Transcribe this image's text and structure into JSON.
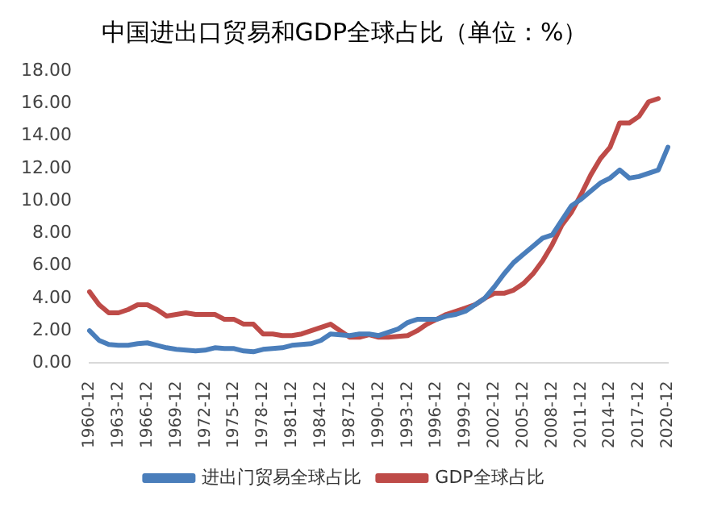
{
  "chart_data": {
    "type": "line",
    "title": "中国进出口贸易和GDP全球占比（单位：%）",
    "categories": [
      "1960-12",
      null,
      null,
      "1963-12",
      null,
      null,
      "1966-12",
      null,
      null,
      "1969-12",
      null,
      null,
      "1972-12",
      null,
      null,
      "1975-12",
      null,
      null,
      "1978-12",
      null,
      null,
      "1981-12",
      null,
      null,
      "1984-12",
      null,
      null,
      "1987-12",
      null,
      null,
      "1990-12",
      null,
      null,
      "1993-12",
      null,
      null,
      "1996-12",
      null,
      null,
      "1999-12",
      null,
      null,
      "2002-12",
      null,
      null,
      "2005-12",
      null,
      null,
      "2008-12",
      null,
      null,
      "2011-12",
      null,
      null,
      "2014-12",
      null,
      null,
      "2017-12",
      null,
      null,
      "2020-12"
    ],
    "series": [
      {
        "name": "进出门贸易全球占比",
        "color": "#4a7ebb",
        "values": [
          2.0,
          1.4,
          1.15,
          1.1,
          1.1,
          1.2,
          1.25,
          1.1,
          0.95,
          0.85,
          0.8,
          0.75,
          0.8,
          0.95,
          0.9,
          0.9,
          0.75,
          0.7,
          0.85,
          0.9,
          0.95,
          1.1,
          1.15,
          1.2,
          1.4,
          1.8,
          1.75,
          1.7,
          1.8,
          1.8,
          1.7,
          1.9,
          2.1,
          2.5,
          2.7,
          2.7,
          2.7,
          2.9,
          3.0,
          3.2,
          3.6,
          4.0,
          4.7,
          5.5,
          6.2,
          6.7,
          7.2,
          7.7,
          7.9,
          8.8,
          9.7,
          10.1,
          10.6,
          11.1,
          11.4,
          11.9,
          11.4,
          11.5,
          11.7,
          11.9,
          13.3
        ]
      },
      {
        "name": "GDP全球占比",
        "color": "#be4b48",
        "values": [
          4.4,
          3.6,
          3.1,
          3.1,
          3.3,
          3.6,
          3.6,
          3.3,
          2.9,
          3.0,
          3.1,
          3.0,
          3.0,
          3.0,
          2.7,
          2.7,
          2.4,
          2.4,
          1.8,
          1.8,
          1.7,
          1.7,
          1.8,
          2.0,
          2.2,
          2.4,
          2.0,
          1.6,
          1.6,
          1.75,
          1.6,
          1.6,
          1.65,
          1.7,
          2.0,
          2.4,
          2.7,
          3.0,
          3.2,
          3.4,
          3.6,
          4.0,
          4.3,
          4.3,
          4.5,
          4.9,
          5.5,
          6.3,
          7.3,
          8.5,
          9.3,
          10.4,
          11.6,
          12.6,
          13.3,
          14.8,
          14.8,
          15.2,
          16.1,
          16.3,
          null
        ]
      }
    ],
    "ylim": [
      0,
      18
    ],
    "yticks": [
      {
        "value": 0,
        "label": "0.00"
      },
      {
        "value": 2,
        "label": "2.00"
      },
      {
        "value": 4,
        "label": "4.00"
      },
      {
        "value": 6,
        "label": "6.00"
      },
      {
        "value": 8,
        "label": "8.00"
      },
      {
        "value": 10,
        "label": "10.00"
      },
      {
        "value": 12,
        "label": "12.00"
      },
      {
        "value": 14,
        "label": "14.00"
      },
      {
        "value": 16,
        "label": "16.00"
      },
      {
        "value": 18,
        "label": "18.00"
      }
    ],
    "grid": false,
    "legend": "bottom",
    "marker": "none",
    "line_style": "solid"
  }
}
